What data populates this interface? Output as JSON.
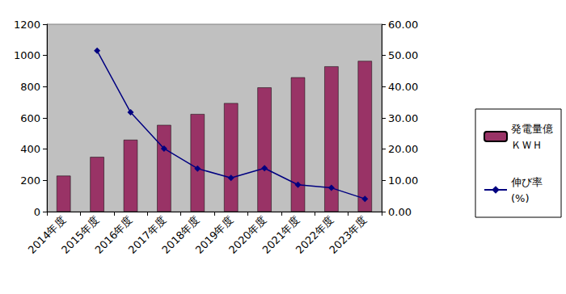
{
  "chart_data": {
    "type": "bar",
    "categories": [
      "2014年度",
      "2015年度",
      "2016年度",
      "2017年度",
      "2018年度",
      "2019年度",
      "2020年度",
      "2021年度",
      "2022年度",
      "2023年度"
    ],
    "series": [
      {
        "name": "発電量億\nＫＷＨ",
        "type": "bar",
        "color": "#993366",
        "values": [
          230,
          350,
          460,
          555,
          625,
          695,
          795,
          860,
          930,
          965
        ]
      },
      {
        "name": "伸び率\n(%)",
        "type": "line",
        "axis": "y2",
        "color": "#000080",
        "marker": "diamond",
        "line_style": "solid",
        "values": [
          null,
          51.5,
          31.8,
          20.2,
          13.8,
          10.8,
          13.9,
          8.6,
          7.6,
          4.1
        ]
      }
    ],
    "ylim": [
      0,
      1200
    ],
    "yticks": [
      0,
      200,
      400,
      600,
      800,
      1000,
      1200
    ],
    "y2lim": [
      0,
      60
    ],
    "y2ticks": [
      {
        "value": 0,
        "label": "0.00"
      },
      {
        "value": 10,
        "label": "10.00"
      },
      {
        "value": 20,
        "label": "20.00"
      },
      {
        "value": 30,
        "label": "30.00"
      },
      {
        "value": 40,
        "label": "40.00"
      },
      {
        "value": 50,
        "label": "50.00"
      },
      {
        "value": 60,
        "label": "60.00"
      }
    ],
    "grid": false,
    "legend": "right"
  }
}
